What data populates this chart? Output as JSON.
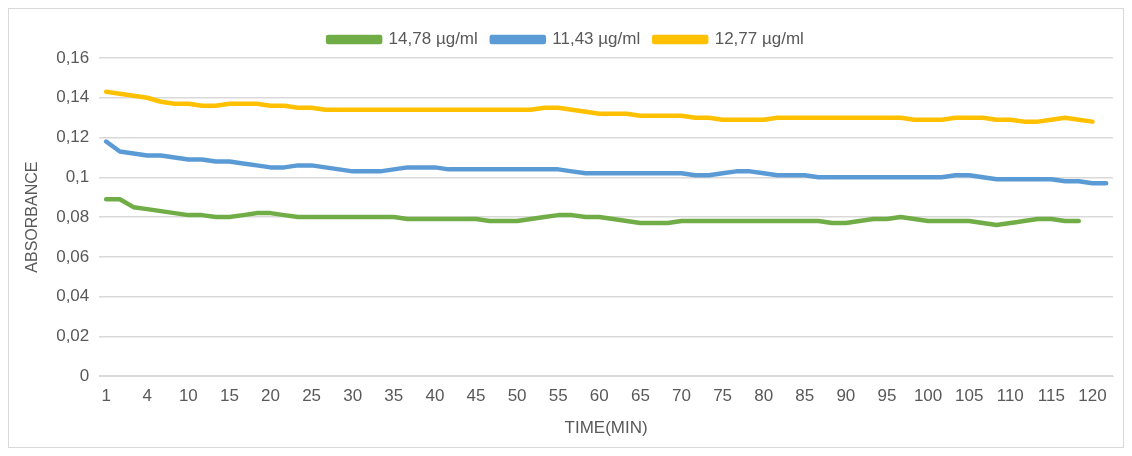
{
  "chart_data": {
    "type": "line",
    "xlabel": "TIME(MIN)",
    "ylabel": "ABSORBANCE",
    "categories": [
      "1",
      null,
      null,
      "4",
      null,
      null,
      "10",
      null,
      null,
      "15",
      null,
      null,
      "20",
      null,
      null,
      "25",
      null,
      null,
      "30",
      null,
      null,
      "35",
      null,
      null,
      "40",
      null,
      null,
      "45",
      null,
      null,
      "50",
      null,
      null,
      "55",
      null,
      null,
      "60",
      null,
      null,
      "65",
      null,
      null,
      "70",
      null,
      null,
      "75",
      null,
      null,
      "80",
      null,
      null,
      "85",
      null,
      null,
      "90",
      null,
      null,
      "95",
      null,
      null,
      "100",
      null,
      null,
      "105",
      null,
      null,
      "110",
      null,
      null,
      "115",
      null,
      null,
      "120",
      null
    ],
    "series": [
      {
        "name": "14,78 µg/ml",
        "color": "#70ad47",
        "values": [
          0.089,
          0.089,
          0.085,
          0.084,
          0.083,
          0.082,
          0.081,
          0.081,
          0.08,
          0.08,
          0.081,
          0.082,
          0.082,
          0.081,
          0.08,
          0.08,
          0.08,
          0.08,
          0.08,
          0.08,
          0.08,
          0.08,
          0.079,
          0.079,
          0.079,
          0.079,
          0.079,
          0.079,
          0.078,
          0.078,
          0.078,
          0.079,
          0.08,
          0.081,
          0.081,
          0.08,
          0.08,
          0.079,
          0.078,
          0.077,
          0.077,
          0.077,
          0.078,
          0.078,
          0.078,
          0.078,
          0.078,
          0.078,
          0.078,
          0.078,
          0.078,
          0.078,
          0.078,
          0.077,
          0.077,
          0.078,
          0.079,
          0.079,
          0.08,
          0.079,
          0.078,
          0.078,
          0.078,
          0.078,
          0.077,
          0.076,
          0.077,
          0.078,
          0.079,
          0.079,
          0.078,
          0.078,
          null,
          null
        ]
      },
      {
        "name": "11,43 µg/ml",
        "color": "#5b9bd5",
        "values": [
          0.118,
          0.113,
          0.112,
          0.111,
          0.111,
          0.11,
          0.109,
          0.109,
          0.108,
          0.108,
          0.107,
          0.106,
          0.105,
          0.105,
          0.106,
          0.106,
          0.105,
          0.104,
          0.103,
          0.103,
          0.103,
          0.104,
          0.105,
          0.105,
          0.105,
          0.104,
          0.104,
          0.104,
          0.104,
          0.104,
          0.104,
          0.104,
          0.104,
          0.104,
          0.103,
          0.102,
          0.102,
          0.102,
          0.102,
          0.102,
          0.102,
          0.102,
          0.102,
          0.101,
          0.101,
          0.102,
          0.103,
          0.103,
          0.102,
          0.101,
          0.101,
          0.101,
          0.1,
          0.1,
          0.1,
          0.1,
          0.1,
          0.1,
          0.1,
          0.1,
          0.1,
          0.1,
          0.101,
          0.101,
          0.1,
          0.099,
          0.099,
          0.099,
          0.099,
          0.099,
          0.098,
          0.098,
          0.097,
          0.097
        ]
      },
      {
        "name": "12,77 µg/ml",
        "color": "#ffc000",
        "values": [
          0.143,
          0.142,
          0.141,
          0.14,
          0.138,
          0.137,
          0.137,
          0.136,
          0.136,
          0.137,
          0.137,
          0.137,
          0.136,
          0.136,
          0.135,
          0.135,
          0.134,
          0.134,
          0.134,
          0.134,
          0.134,
          0.134,
          0.134,
          0.134,
          0.134,
          0.134,
          0.134,
          0.134,
          0.134,
          0.134,
          0.134,
          0.134,
          0.135,
          0.135,
          0.134,
          0.133,
          0.132,
          0.132,
          0.132,
          0.131,
          0.131,
          0.131,
          0.131,
          0.13,
          0.13,
          0.129,
          0.129,
          0.129,
          0.129,
          0.13,
          0.13,
          0.13,
          0.13,
          0.13,
          0.13,
          0.13,
          0.13,
          0.13,
          0.13,
          0.129,
          0.129,
          0.129,
          0.13,
          0.13,
          0.13,
          0.129,
          0.129,
          0.128,
          0.128,
          0.129,
          0.13,
          0.129,
          0.128,
          null
        ]
      }
    ],
    "ylim": [
      0,
      0.16
    ],
    "yticks": [
      0,
      {
        "value": 0.02,
        "label": "0,02"
      },
      {
        "value": 0.04,
        "label": "0,04"
      },
      {
        "value": 0.06,
        "label": "0,06"
      },
      {
        "value": 0.08,
        "label": "0,08"
      },
      {
        "value": 0.1,
        "label": "0,1"
      },
      {
        "value": 0.12,
        "label": "0,12"
      },
      {
        "value": 0.14,
        "label": "0,14"
      },
      {
        "value": 0.16,
        "label": "0,16"
      }
    ],
    "grid": "y",
    "legend": "top",
    "marker": "none",
    "line_style": "solid"
  }
}
